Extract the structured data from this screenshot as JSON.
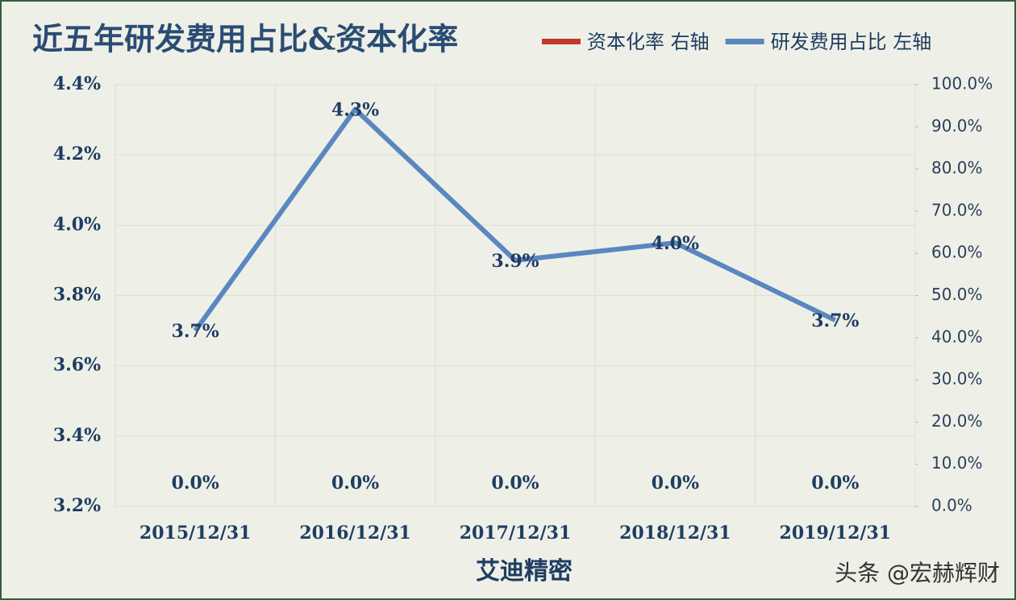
{
  "chart_data": {
    "type": "bar_line",
    "title": "近五年研发费用占比&资本化率",
    "xlabel": "艾迪精密",
    "watermark": "头条 @宏赫辉财",
    "categories": [
      "2015/12/31",
      "2016/12/31",
      "2017/12/31",
      "2018/12/31",
      "2019/12/31"
    ],
    "series": [
      {
        "name": "资本化率 右轴",
        "type": "bar",
        "axis": "y2",
        "color": "#c0392b",
        "values": [
          0,
          0,
          0,
          0,
          0
        ],
        "value_labels": [
          "0.0%",
          "0.0%",
          "0.0%",
          "0.0%",
          "0.0%"
        ]
      },
      {
        "name": "研发费用占比 左轴",
        "type": "line",
        "axis": "y",
        "color": "#5b87c0",
        "values": [
          3.7,
          4.33,
          3.9,
          3.95,
          3.73
        ],
        "value_labels": [
          "3.7%",
          "4.3%",
          "3.9%",
          "4.0%",
          "3.7%"
        ]
      }
    ],
    "ylim": [
      3.2,
      4.4
    ],
    "yticks": [
      {
        "value": 3.2,
        "label": "3.2%"
      },
      {
        "value": 3.4,
        "label": "3.4%"
      },
      {
        "value": 3.6,
        "label": "3.6%"
      },
      {
        "value": 3.8,
        "label": "3.8%"
      },
      {
        "value": 4.0,
        "label": "4.0%"
      },
      {
        "value": 4.2,
        "label": "4.2%"
      },
      {
        "value": 4.4,
        "label": "4.4%"
      }
    ],
    "y2lim": [
      0,
      100
    ],
    "y2ticks": [
      {
        "value": 0,
        "label": "0.0%"
      },
      {
        "value": 10,
        "label": "10.0%"
      },
      {
        "value": 20,
        "label": "20.0%"
      },
      {
        "value": 30,
        "label": "30.0%"
      },
      {
        "value": 40,
        "label": "40.0%"
      },
      {
        "value": 50,
        "label": "50.0%"
      },
      {
        "value": 60,
        "label": "60.0%"
      },
      {
        "value": 70,
        "label": "70.0%"
      },
      {
        "value": 80,
        "label": "80.0%"
      },
      {
        "value": 90,
        "label": "90.0%"
      },
      {
        "value": 100,
        "label": "100.0%"
      }
    ],
    "grid": true
  }
}
